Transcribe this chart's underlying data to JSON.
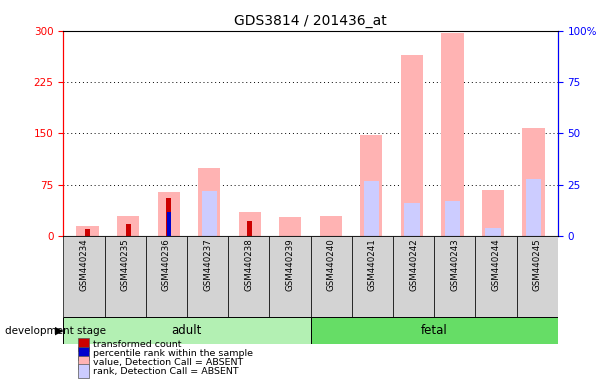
{
  "title": "GDS3814 / 201436_at",
  "samples": [
    "GSM440234",
    "GSM440235",
    "GSM440236",
    "GSM440237",
    "GSM440238",
    "GSM440239",
    "GSM440240",
    "GSM440241",
    "GSM440242",
    "GSM440243",
    "GSM440244",
    "GSM440245"
  ],
  "groups": [
    "adult",
    "adult",
    "adult",
    "adult",
    "adult",
    "adult",
    "fetal",
    "fetal",
    "fetal",
    "fetal",
    "fetal",
    "fetal"
  ],
  "value_absent": [
    15,
    30,
    65,
    100,
    35,
    28,
    30,
    148,
    265,
    297,
    68,
    158
  ],
  "rank_absent_pct": [
    0,
    0,
    0,
    22,
    0,
    0,
    0,
    27,
    16,
    17,
    4,
    28
  ],
  "transformed_count": [
    10,
    18,
    55,
    0,
    22,
    0,
    0,
    0,
    0,
    0,
    0,
    0
  ],
  "percentile_rank_pct": [
    0,
    0,
    12,
    0,
    0,
    0,
    0,
    0,
    0,
    0,
    0,
    0
  ],
  "ylim_left": [
    0,
    300
  ],
  "ylim_right": [
    0,
    100
  ],
  "yticks_left": [
    0,
    75,
    150,
    225,
    300
  ],
  "yticks_right": [
    0,
    25,
    50,
    75,
    100
  ],
  "legend_labels": [
    "transformed count",
    "percentile rank within the sample",
    "value, Detection Call = ABSENT",
    "rank, Detection Call = ABSENT"
  ],
  "bar_color_value_absent": "#ffb3b3",
  "bar_color_rank_absent": "#ccccff",
  "bar_color_transformed": "#cc0000",
  "bar_color_percentile": "#0000cc",
  "adult_color": "#b3f0b3",
  "fetal_color": "#66dd66",
  "sample_box_color": "#d3d3d3"
}
